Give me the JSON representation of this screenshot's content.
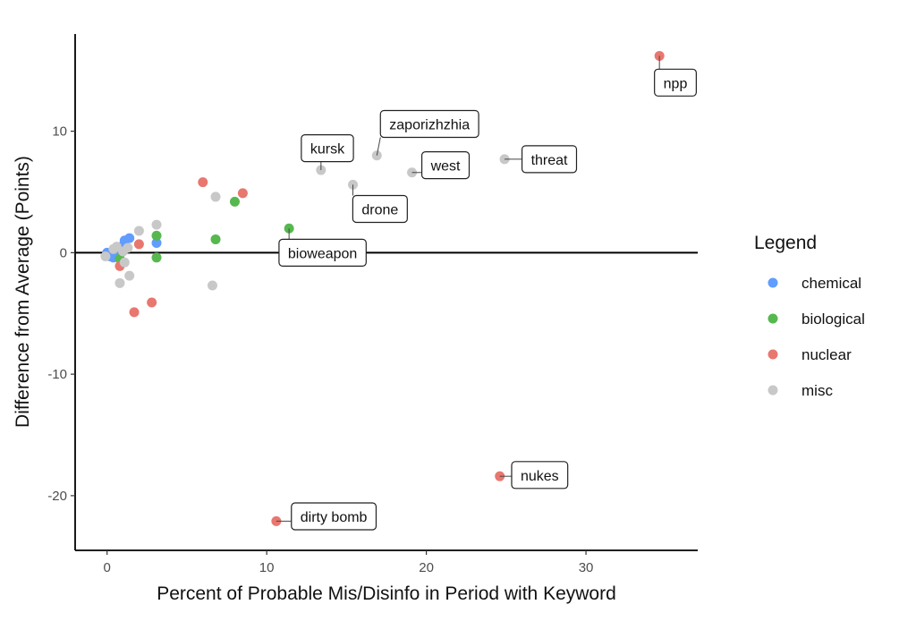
{
  "chart_data": {
    "type": "scatter",
    "xlabel": "Percent of Probable Mis/Disinfo in Period with Keyword",
    "ylabel": "Difference from Average (Points)",
    "xlim": [
      -2,
      37
    ],
    "ylim": [
      -24.5,
      18
    ],
    "xticks": [
      0,
      10,
      20,
      30
    ],
    "yticks": [
      -20,
      -10,
      0,
      10
    ],
    "xtick_labels": [
      "0",
      "10",
      "20",
      "30"
    ],
    "ytick_labels": [
      "-20",
      "-10",
      "0",
      "10"
    ],
    "reference_line_y": 0,
    "grid": false,
    "legend": {
      "title": "Legend",
      "placement": "right",
      "entries": [
        {
          "key": "chemical",
          "label": "chemical",
          "color": "#619CFF"
        },
        {
          "key": "biological",
          "label": "biological",
          "color": "#56B84F"
        },
        {
          "key": "nuclear",
          "label": "nuclear",
          "color": "#E8776F"
        },
        {
          "key": "misc",
          "label": "misc",
          "color": "#C8C8C8"
        }
      ]
    },
    "series": [
      {
        "name": "chemical",
        "points": [
          {
            "x": 0.0,
            "y": 0.0
          },
          {
            "x": 0.2,
            "y": -0.3
          },
          {
            "x": 0.4,
            "y": -0.4
          },
          {
            "x": 0.6,
            "y": 0.2
          },
          {
            "x": 0.9,
            "y": 0.5
          },
          {
            "x": 1.1,
            "y": 1.0
          },
          {
            "x": 1.4,
            "y": 1.2
          },
          {
            "x": 3.1,
            "y": 0.8
          }
        ]
      },
      {
        "name": "biological",
        "points": [
          {
            "x": 0.8,
            "y": -0.5
          },
          {
            "x": 3.1,
            "y": 1.4
          },
          {
            "x": 3.1,
            "y": -0.4
          },
          {
            "x": 6.8,
            "y": 1.1
          },
          {
            "x": 8.0,
            "y": 4.2
          },
          {
            "x": 11.4,
            "y": 2.0
          }
        ]
      },
      {
        "name": "nuclear",
        "points": [
          {
            "x": 0.8,
            "y": -1.1
          },
          {
            "x": 1.7,
            "y": -4.9
          },
          {
            "x": 2.0,
            "y": 0.7
          },
          {
            "x": 2.8,
            "y": -4.1
          },
          {
            "x": 6.0,
            "y": 5.8
          },
          {
            "x": 8.5,
            "y": 4.9
          },
          {
            "x": 10.6,
            "y": -22.1
          },
          {
            "x": 24.6,
            "y": -18.4
          },
          {
            "x": 34.6,
            "y": 16.2
          }
        ]
      },
      {
        "name": "misc",
        "points": [
          {
            "x": -0.1,
            "y": -0.3
          },
          {
            "x": 0.4,
            "y": 0.3
          },
          {
            "x": 0.6,
            "y": 0.5
          },
          {
            "x": 0.8,
            "y": -2.5
          },
          {
            "x": 1.0,
            "y": 0.1
          },
          {
            "x": 1.1,
            "y": -0.8
          },
          {
            "x": 1.3,
            "y": 0.4
          },
          {
            "x": 1.4,
            "y": -1.9
          },
          {
            "x": 2.0,
            "y": 1.8
          },
          {
            "x": 3.1,
            "y": 2.3
          },
          {
            "x": 6.6,
            "y": -2.7
          },
          {
            "x": 6.8,
            "y": 4.6
          },
          {
            "x": 13.4,
            "y": 6.8
          },
          {
            "x": 15.4,
            "y": 5.6
          },
          {
            "x": 16.9,
            "y": 8.0
          },
          {
            "x": 19.1,
            "y": 6.6
          },
          {
            "x": 24.9,
            "y": 7.7
          }
        ]
      }
    ],
    "point_labels": [
      {
        "text": "npp",
        "x": 34.6,
        "y": 16.2,
        "label_x": 35.6,
        "label_y": 14.0
      },
      {
        "text": "zaporizhzhia",
        "x": 16.9,
        "y": 8.0,
        "label_x": 20.2,
        "label_y": 10.6
      },
      {
        "text": "kursk",
        "x": 13.4,
        "y": 6.8,
        "label_x": 13.8,
        "label_y": 8.6
      },
      {
        "text": "west",
        "x": 19.1,
        "y": 6.6,
        "label_x": 21.2,
        "label_y": 7.2
      },
      {
        "text": "threat",
        "x": 24.9,
        "y": 7.7,
        "label_x": 27.7,
        "label_y": 7.7
      },
      {
        "text": "drone",
        "x": 15.4,
        "y": 5.6,
        "label_x": 17.1,
        "label_y": 3.6
      },
      {
        "text": "bioweapon",
        "x": 11.4,
        "y": 2.0,
        "label_x": 13.5,
        "label_y": 0.0
      },
      {
        "text": "nukes",
        "x": 24.6,
        "y": -18.4,
        "label_x": 27.1,
        "label_y": -18.3
      },
      {
        "text": "dirty bomb",
        "x": 10.6,
        "y": -22.1,
        "label_x": 14.2,
        "label_y": -21.7
      }
    ]
  }
}
